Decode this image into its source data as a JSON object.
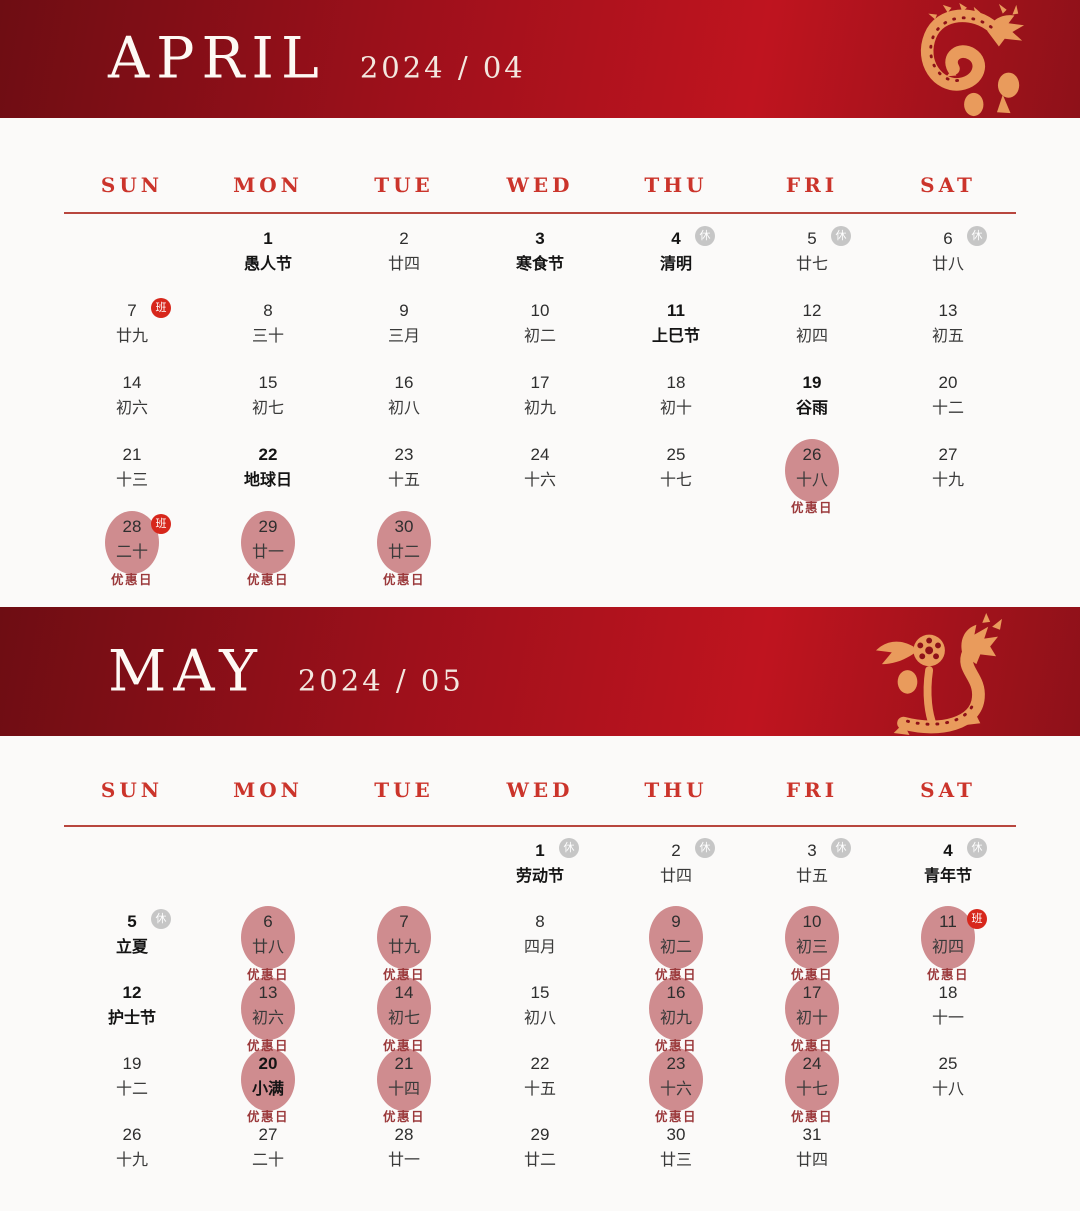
{
  "legend": {
    "rest_label": "休",
    "work_label": "班",
    "discount_label": "优惠日"
  },
  "colors": {
    "banner_red_dark": "#6e0d13",
    "banner_red_bright": "#bf141f",
    "accent_red": "#cb342b",
    "discount_circle": "#cf8c8f",
    "discount_text": "#9b393b",
    "work_badge": "#d7271c",
    "rest_badge": "#c6c6c6",
    "dragon_orange": "#e99b5c"
  },
  "months": [
    {
      "title": "APRIL",
      "subtitle": "2024 / 04",
      "weekdays": [
        "SUN",
        "MON",
        "TUE",
        "WED",
        "THU",
        "FRI",
        "SAT"
      ],
      "weeks": [
        [
          null,
          {
            "d": "1",
            "t": "愚人节",
            "f": true
          },
          {
            "d": "2",
            "t": "廿四"
          },
          {
            "d": "3",
            "t": "寒食节",
            "f": true
          },
          {
            "d": "4",
            "t": "清明",
            "f": true,
            "b": "rest"
          },
          {
            "d": "5",
            "t": "廿七",
            "b": "rest"
          },
          {
            "d": "6",
            "t": "廿八",
            "b": "rest"
          }
        ],
        [
          {
            "d": "7",
            "t": "廿九",
            "b": "work"
          },
          {
            "d": "8",
            "t": "三十"
          },
          {
            "d": "9",
            "t": "三月"
          },
          {
            "d": "10",
            "t": "初二"
          },
          {
            "d": "11",
            "t": "上巳节",
            "f": true
          },
          {
            "d": "12",
            "t": "初四"
          },
          {
            "d": "13",
            "t": "初五"
          }
        ],
        [
          {
            "d": "14",
            "t": "初六"
          },
          {
            "d": "15",
            "t": "初七"
          },
          {
            "d": "16",
            "t": "初八"
          },
          {
            "d": "17",
            "t": "初九"
          },
          {
            "d": "18",
            "t": "初十"
          },
          {
            "d": "19",
            "t": "谷雨",
            "f": true
          },
          {
            "d": "20",
            "t": "十二"
          }
        ],
        [
          {
            "d": "21",
            "t": "十三"
          },
          {
            "d": "22",
            "t": "地球日",
            "f": true
          },
          {
            "d": "23",
            "t": "十五"
          },
          {
            "d": "24",
            "t": "十六"
          },
          {
            "d": "25",
            "t": "十七"
          },
          {
            "d": "26",
            "t": "十八",
            "promo": true
          },
          {
            "d": "27",
            "t": "十九"
          }
        ],
        [
          {
            "d": "28",
            "t": "二十",
            "b": "work",
            "promo": true
          },
          {
            "d": "29",
            "t": "廿一",
            "promo": true
          },
          {
            "d": "30",
            "t": "廿二",
            "promo": true
          },
          null,
          null,
          null,
          null
        ]
      ]
    },
    {
      "title": "MAY",
      "subtitle": "2024 / 05",
      "weekdays": [
        "SUN",
        "MON",
        "TUE",
        "WED",
        "THU",
        "FRI",
        "SAT"
      ],
      "weeks": [
        [
          null,
          null,
          null,
          {
            "d": "1",
            "t": "劳动节",
            "f": true,
            "b": "rest"
          },
          {
            "d": "2",
            "t": "廿四",
            "b": "rest"
          },
          {
            "d": "3",
            "t": "廿五",
            "b": "rest"
          },
          {
            "d": "4",
            "t": "青年节",
            "f": true,
            "b": "rest"
          }
        ],
        [
          {
            "d": "5",
            "t": "立夏",
            "f": true,
            "b": "rest"
          },
          {
            "d": "6",
            "t": "廿八",
            "promo": true
          },
          {
            "d": "7",
            "t": "廿九",
            "promo": true
          },
          {
            "d": "8",
            "t": "四月"
          },
          {
            "d": "9",
            "t": "初二",
            "promo": true
          },
          {
            "d": "10",
            "t": "初三",
            "promo": true
          },
          {
            "d": "11",
            "t": "初四",
            "b": "work",
            "promo": true
          }
        ],
        [
          {
            "d": "12",
            "t": "护士节",
            "f": true
          },
          {
            "d": "13",
            "t": "初六",
            "promo": true
          },
          {
            "d": "14",
            "t": "初七",
            "promo": true
          },
          {
            "d": "15",
            "t": "初八"
          },
          {
            "d": "16",
            "t": "初九",
            "promo": true
          },
          {
            "d": "17",
            "t": "初十",
            "promo": true
          },
          {
            "d": "18",
            "t": "十一"
          }
        ],
        [
          {
            "d": "19",
            "t": "十二"
          },
          {
            "d": "20",
            "t": "小满",
            "f": true,
            "promo": true
          },
          {
            "d": "21",
            "t": "十四",
            "promo": true
          },
          {
            "d": "22",
            "t": "十五"
          },
          {
            "d": "23",
            "t": "十六",
            "promo": true
          },
          {
            "d": "24",
            "t": "十七",
            "promo": true
          },
          {
            "d": "25",
            "t": "十八"
          }
        ],
        [
          {
            "d": "26",
            "t": "十九"
          },
          {
            "d": "27",
            "t": "二十"
          },
          {
            "d": "28",
            "t": "廿一"
          },
          {
            "d": "29",
            "t": "廿二"
          },
          {
            "d": "30",
            "t": "廿三"
          },
          {
            "d": "31",
            "t": "廿四"
          },
          null
        ]
      ]
    }
  ]
}
